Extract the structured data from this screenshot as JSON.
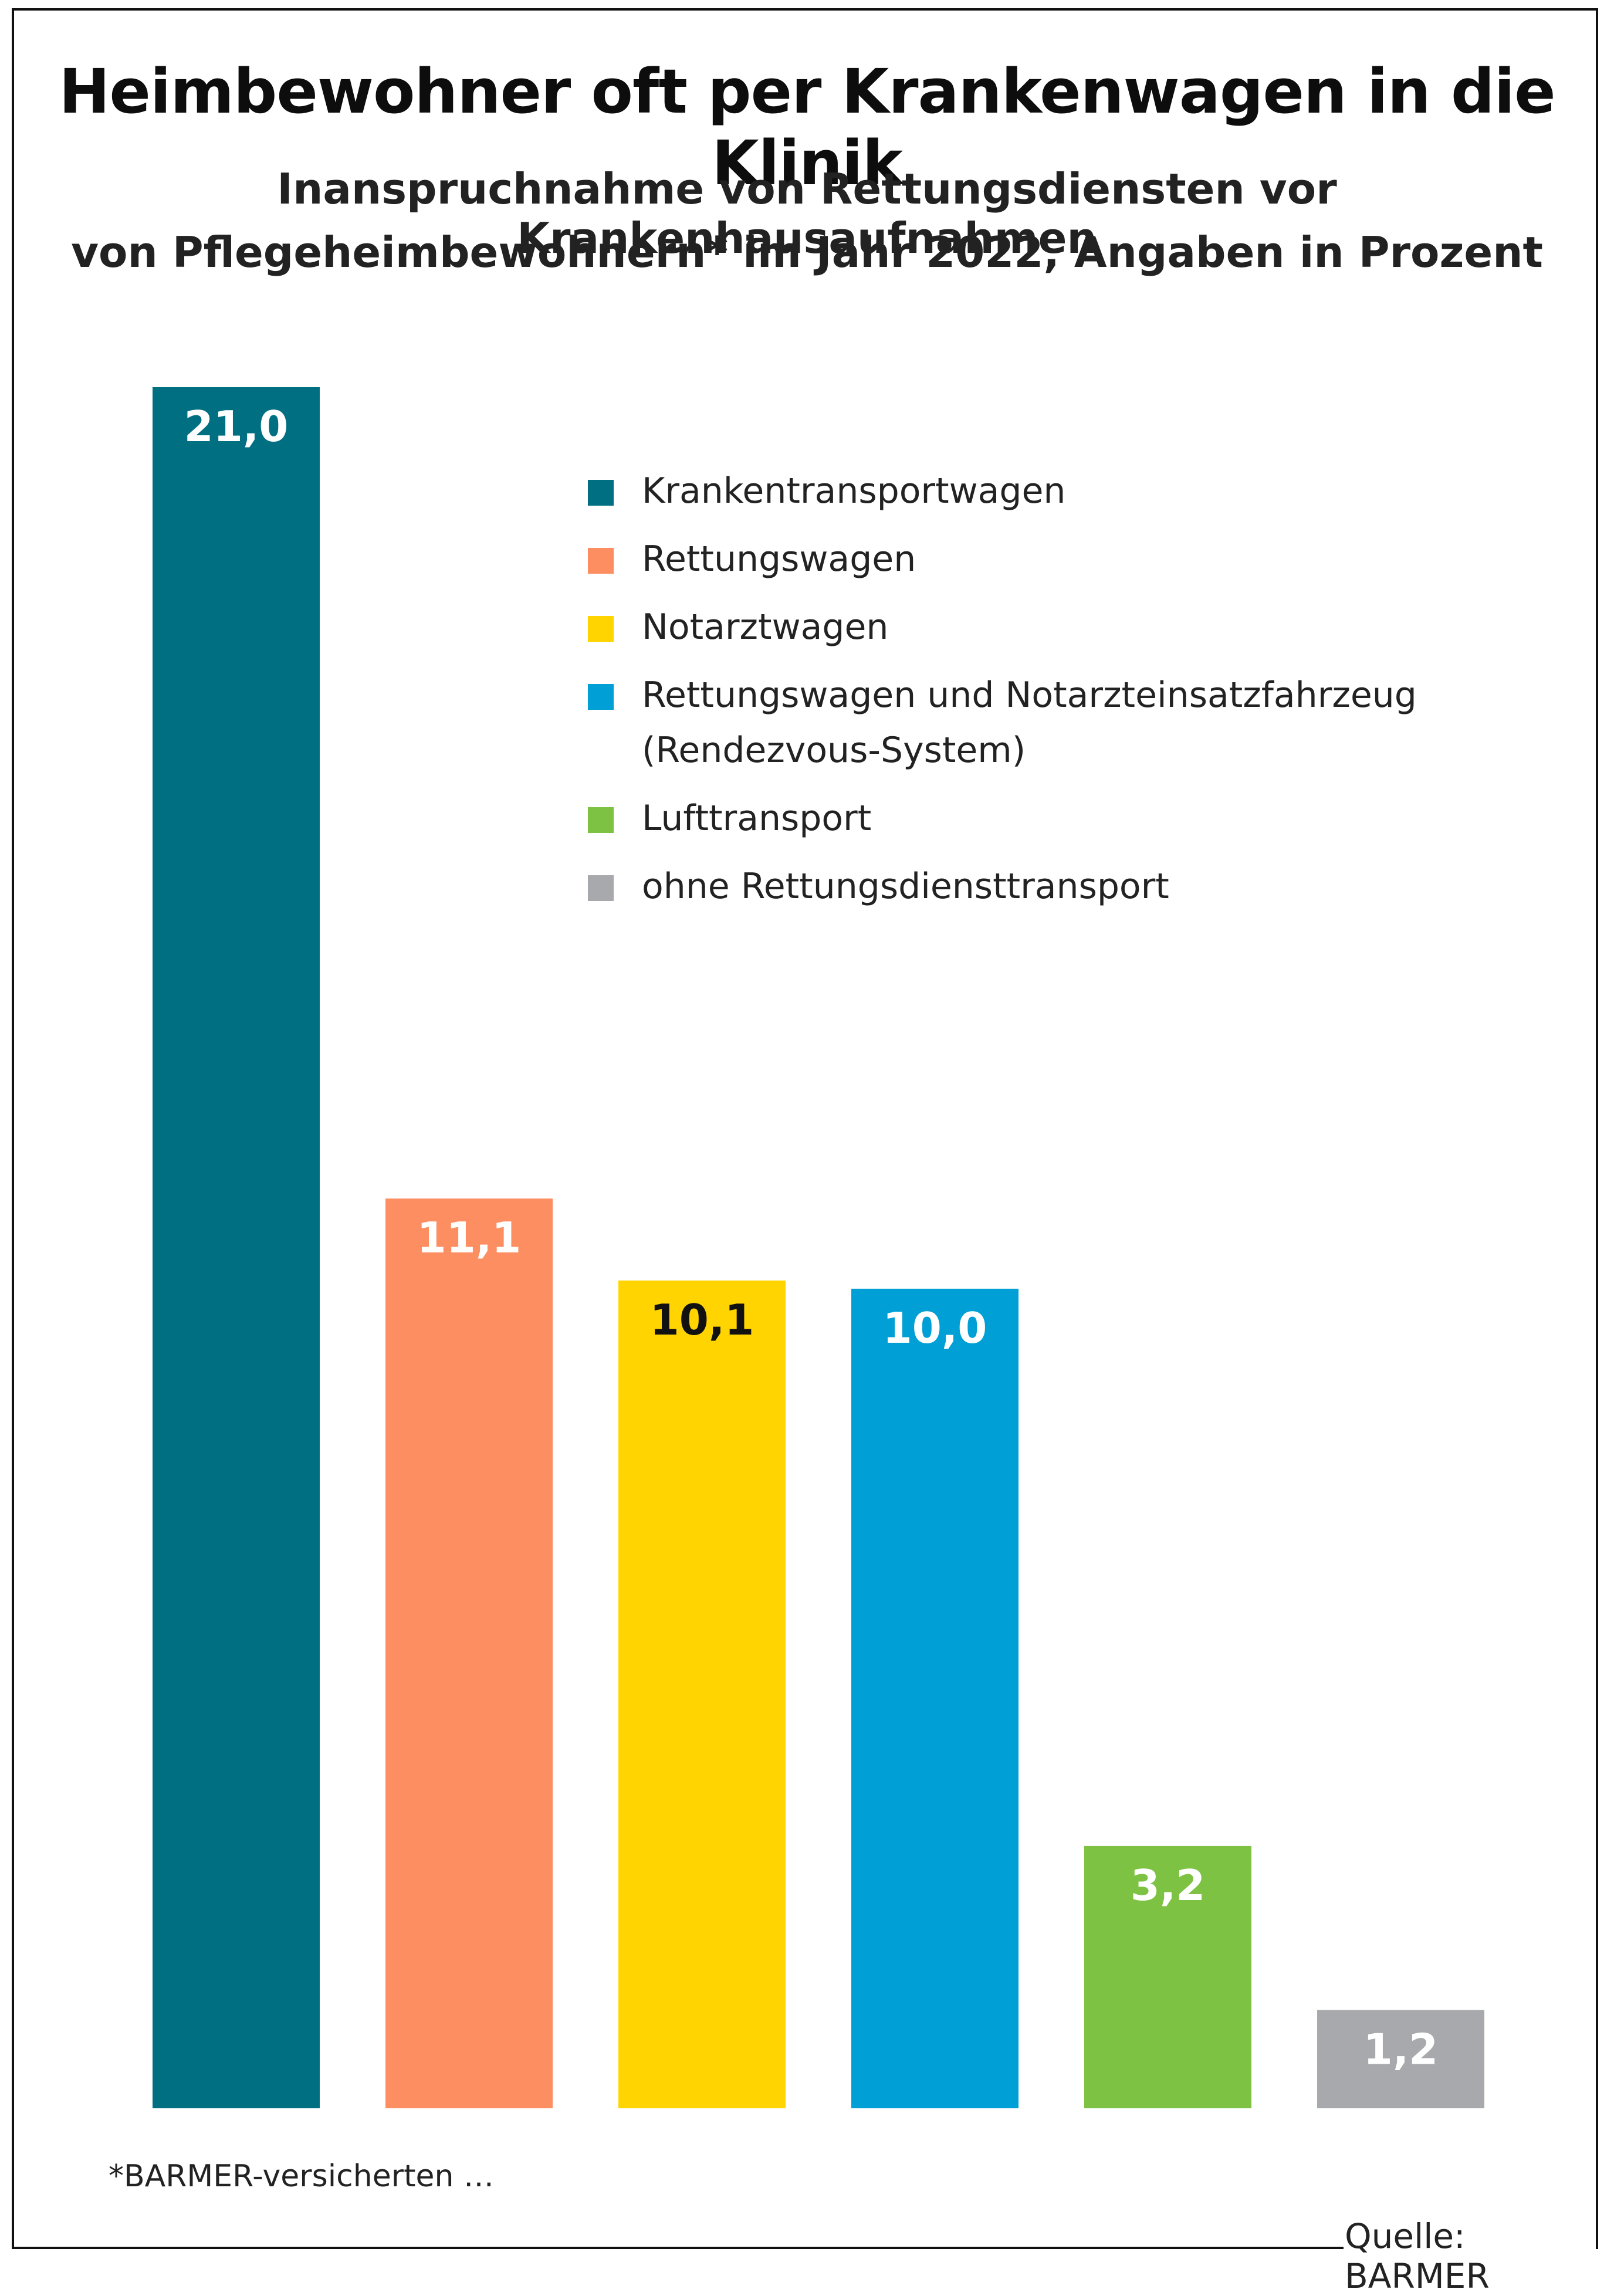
{
  "title": "Heimbewohner oft per Krankenwagen in die Klinik",
  "subtitle_line1": "Inanspruchnahme von Rettungsdiensten vor Krankenhausaufnahmen",
  "subtitle_line2": "von Pflegeheimbewohnern* im Jahr 2022, Angaben in Prozent",
  "footnote": "*BARMER-versicherten …",
  "source": "Quelle: BARMER",
  "colors": {
    "teal": "#006f82",
    "orange": "#fd8e62",
    "yellow": "#ffd400",
    "blue": "#00a0d6",
    "green": "#7dc242",
    "gray": "#a7a9ac"
  },
  "legend": [
    {
      "label": "Krankentransportwagen",
      "color": "#006f82"
    },
    {
      "label": "Rettungswagen",
      "color": "#fd8e62"
    },
    {
      "label": "Notarztwagen",
      "color": "#ffd400"
    },
    {
      "label": "Rettungswagen und Notarzteinsatzfahrzeug\n(Rendezvous-System)",
      "color": "#00a0d6"
    },
    {
      "label": "Lufttransport",
      "color": "#7dc242"
    },
    {
      "label": "ohne Rettungsdiensttransport",
      "color": "#a7a9ac"
    }
  ],
  "chart_data": {
    "type": "bar",
    "title": "Heimbewohner oft per Krankenwagen in die Klinik",
    "categories": [
      "Krankentransportwagen",
      "Rettungswagen",
      "Notarztwagen",
      "Rettungswagen und Notarzteinsatzfahrzeug (Rendezvous-System)",
      "Lufttransport",
      "ohne Rettungsdiensttransport"
    ],
    "values": [
      21.0,
      11.1,
      10.1,
      10.0,
      3.2,
      1.2
    ],
    "value_labels": [
      "21,0",
      "11,1",
      "10,1",
      "10,0",
      "3,2",
      "1,2"
    ],
    "colors": [
      "#006f82",
      "#fd8e62",
      "#ffd400",
      "#00a0d6",
      "#7dc242",
      "#a7a9ac"
    ],
    "label_colors": [
      "#ffffff",
      "#ffffff",
      "#111111",
      "#ffffff",
      "#ffffff",
      "#ffffff"
    ],
    "ylim": [
      0,
      21.0
    ],
    "grid": false,
    "legend_position": "top-right"
  }
}
